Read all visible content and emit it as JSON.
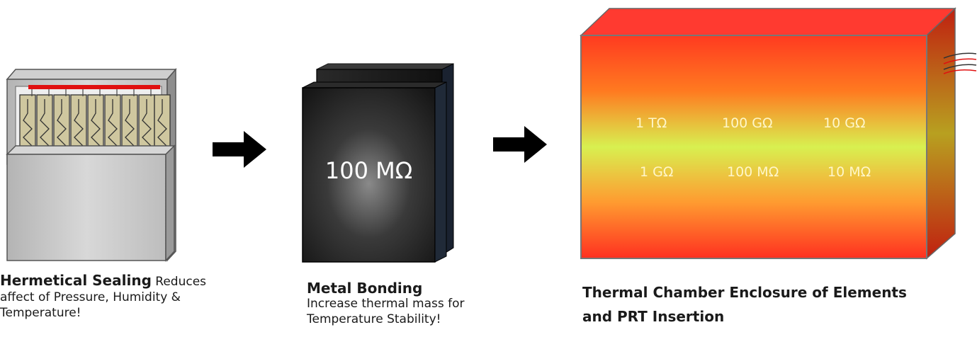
{
  "panels": {
    "hermetic": {
      "caption_title": "Hermetical Sealing",
      "caption_rest": " Reduces",
      "caption_line2": "affect of Pressure, Humidity &",
      "caption_line3": "Temperature!"
    },
    "metal": {
      "resistor_value": "100 MΩ",
      "caption_title": "Metal Bonding",
      "caption_line2": "Increase thermal mass for",
      "caption_line3": "Temperature Stability!"
    },
    "chamber": {
      "row1": [
        "1 TΩ",
        "100 GΩ",
        "10 GΩ"
      ],
      "row2": [
        "1 GΩ",
        "100 MΩ",
        "10 MΩ"
      ],
      "caption_line1": "Thermal Chamber Enclosure of Elements",
      "caption_line2": "and PRT Insertion"
    }
  },
  "colors": {
    "chamber_top": "#ff3a30",
    "chamber_mid": "#d8f050",
    "chamber_side": "#c23010",
    "arrow": "#000000",
    "seal_red_bar": "#e01010",
    "element_fill": "#cfc79f"
  }
}
